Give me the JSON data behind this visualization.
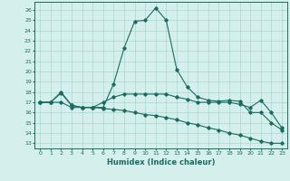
{
  "xlabel": "Humidex (Indice chaleur)",
  "xlim": [
    -0.5,
    23.5
  ],
  "ylim": [
    12.5,
    26.8
  ],
  "yticks": [
    13,
    14,
    15,
    16,
    17,
    18,
    19,
    20,
    21,
    22,
    23,
    24,
    25,
    26
  ],
  "xticks": [
    0,
    1,
    2,
    3,
    4,
    5,
    6,
    7,
    8,
    9,
    10,
    11,
    12,
    13,
    14,
    15,
    16,
    17,
    18,
    19,
    20,
    21,
    22,
    23
  ],
  "background_color": "#d5efec",
  "grid_color": "#a8d8d0",
  "line_color": "#1a6b62",
  "series1_x": [
    0,
    1,
    2,
    3,
    4,
    5,
    6,
    7,
    8,
    9,
    10,
    11,
    12,
    13,
    14,
    15,
    16,
    17,
    18,
    19,
    20,
    21,
    22,
    23
  ],
  "series1_y": [
    17.0,
    17.0,
    18.0,
    16.7,
    16.5,
    16.5,
    16.5,
    18.8,
    22.3,
    24.9,
    25.0,
    26.2,
    25.0,
    20.2,
    18.5,
    17.5,
    17.2,
    17.1,
    17.2,
    17.1,
    16.0,
    16.0,
    15.0,
    14.3
  ],
  "series2_x": [
    0,
    1,
    2,
    3,
    4,
    5,
    6,
    7,
    8,
    9,
    10,
    11,
    12,
    13,
    14,
    15,
    16,
    17,
    18,
    19,
    20,
    21,
    22,
    23
  ],
  "series2_y": [
    17.0,
    17.0,
    17.9,
    16.7,
    16.5,
    16.5,
    17.0,
    17.5,
    17.8,
    17.8,
    17.8,
    17.8,
    17.8,
    17.5,
    17.3,
    17.0,
    17.0,
    17.0,
    17.0,
    16.8,
    16.5,
    17.2,
    16.0,
    14.5
  ],
  "series3_x": [
    0,
    1,
    2,
    3,
    4,
    5,
    6,
    7,
    8,
    9,
    10,
    11,
    12,
    13,
    14,
    15,
    16,
    17,
    18,
    19,
    20,
    21,
    22,
    23
  ],
  "series3_y": [
    17.0,
    17.0,
    17.0,
    16.5,
    16.5,
    16.5,
    16.4,
    16.3,
    16.2,
    16.0,
    15.8,
    15.7,
    15.5,
    15.3,
    15.0,
    14.8,
    14.5,
    14.3,
    14.0,
    13.8,
    13.5,
    13.2,
    13.0,
    13.0
  ]
}
